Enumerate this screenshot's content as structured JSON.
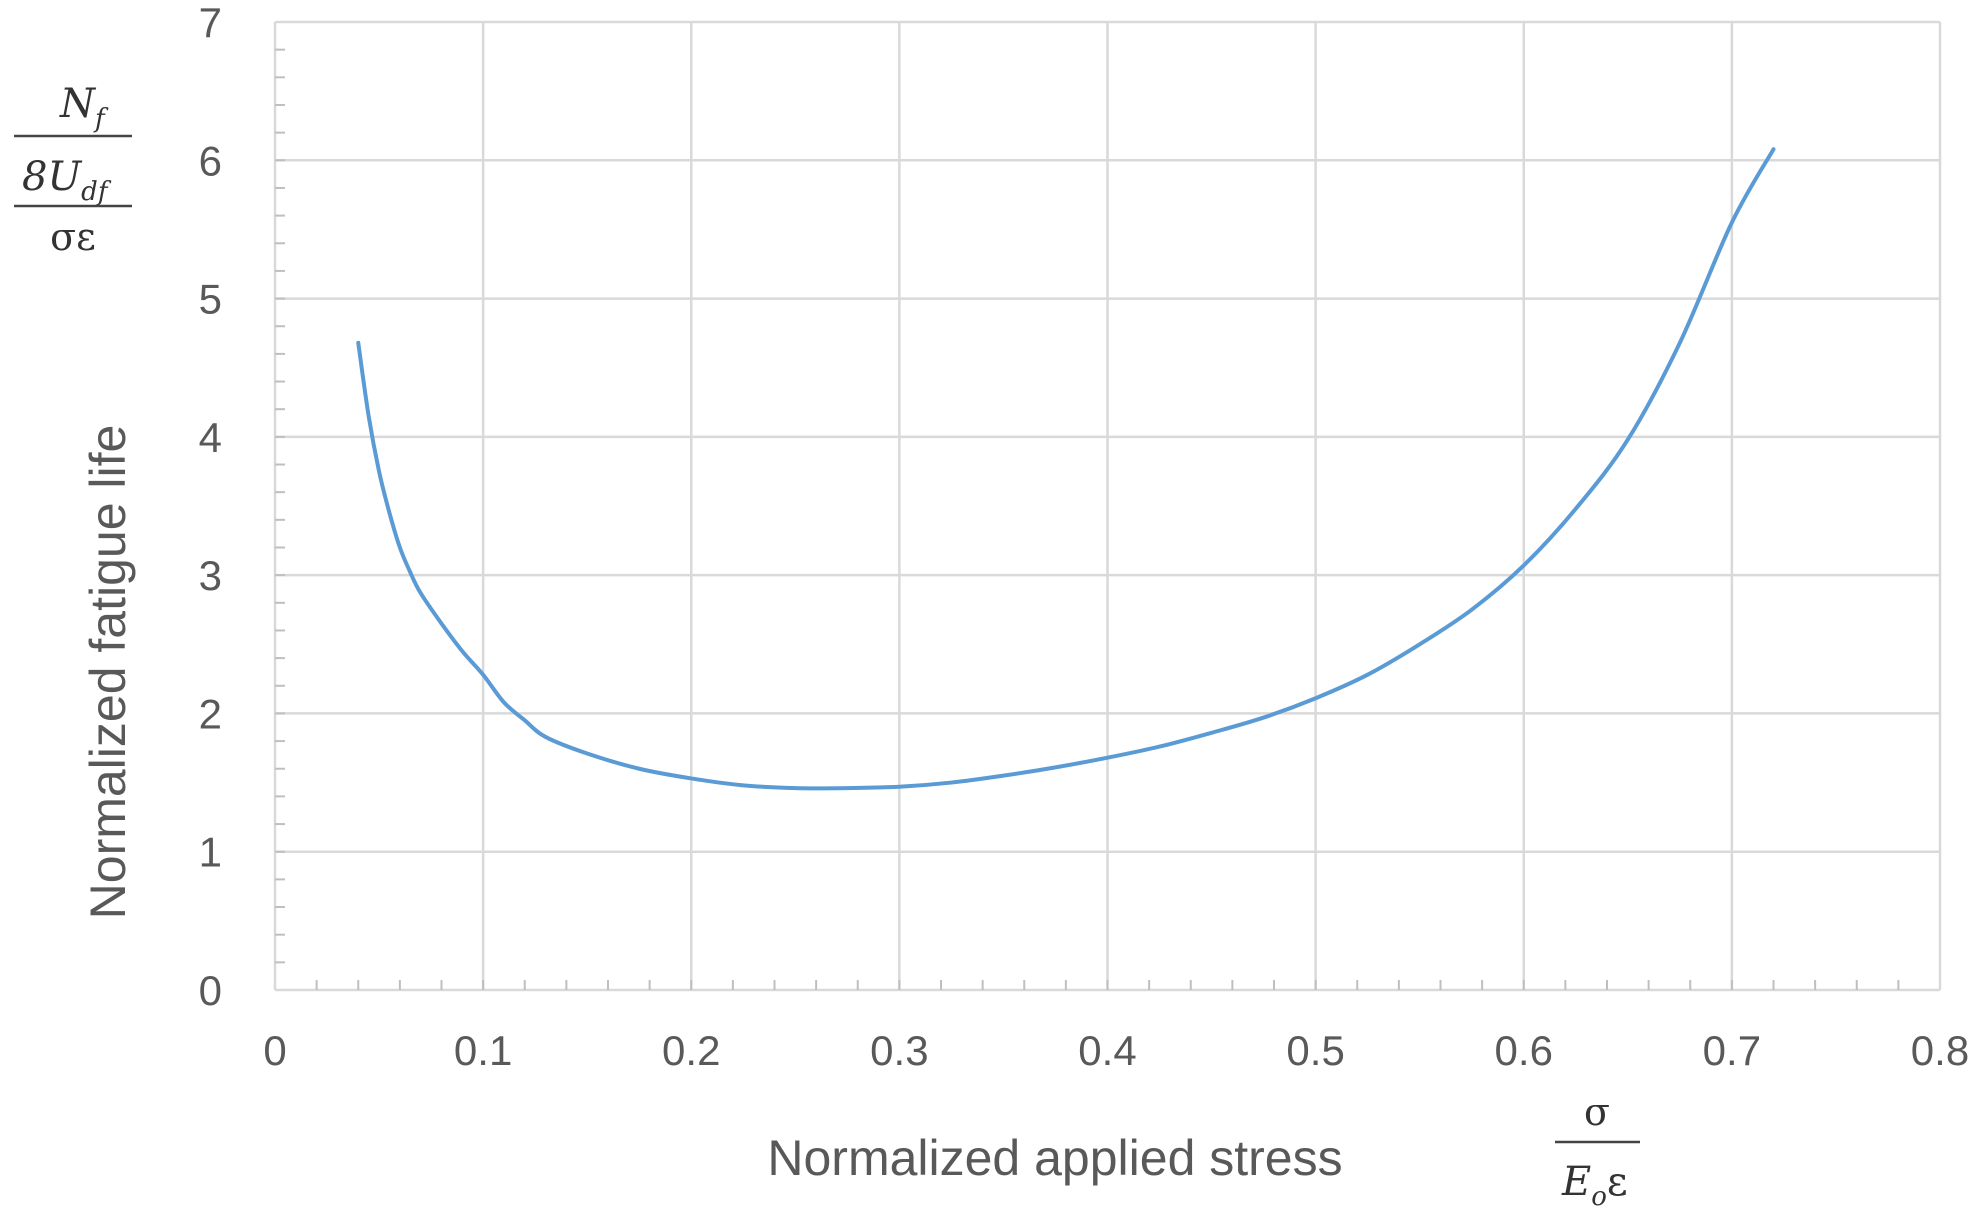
{
  "chart_data": {
    "type": "line",
    "title": "",
    "xlabel": "Normalized applied stress",
    "ylabel": "Normalized fatigue life",
    "xlim": [
      0,
      0.8
    ],
    "ylim": [
      0,
      7
    ],
    "x_ticks": [
      "0",
      "0.1",
      "0.2",
      "0.3",
      "0.4",
      "0.5",
      "0.6",
      "0.7",
      "0.8"
    ],
    "y_ticks": [
      "0",
      "1",
      "2",
      "3",
      "4",
      "5",
      "6",
      "7"
    ],
    "grid": true,
    "legend": "none",
    "x_unit_label": {
      "numerator": "σ",
      "denominator": "E",
      "denominator_sub": "o",
      "denominator_tail": "ε"
    },
    "y_unit_label": {
      "numerator": "N",
      "numerator_sub": "f",
      "middle": "8U",
      "middle_sub": "df",
      "denominator": "σε"
    },
    "series": [
      {
        "color": "#5b9bd5",
        "x": [
          0.04,
          0.045,
          0.05,
          0.055,
          0.06,
          0.065,
          0.07,
          0.08,
          0.09,
          0.1,
          0.11,
          0.12,
          0.13,
          0.15,
          0.175,
          0.2,
          0.225,
          0.25,
          0.275,
          0.3,
          0.325,
          0.35,
          0.375,
          0.4,
          0.425,
          0.45,
          0.475,
          0.5,
          0.525,
          0.55,
          0.575,
          0.6,
          0.625,
          0.65,
          0.675,
          0.7,
          0.72
        ],
        "y": [
          4.68,
          4.15,
          3.75,
          3.45,
          3.2,
          3.02,
          2.87,
          2.65,
          2.45,
          2.28,
          2.08,
          1.95,
          1.83,
          1.71,
          1.6,
          1.53,
          1.48,
          1.46,
          1.46,
          1.47,
          1.5,
          1.55,
          1.61,
          1.68,
          1.76,
          1.86,
          1.97,
          2.11,
          2.28,
          2.5,
          2.75,
          3.07,
          3.48,
          3.98,
          4.68,
          5.55,
          6.08
        ]
      }
    ]
  }
}
